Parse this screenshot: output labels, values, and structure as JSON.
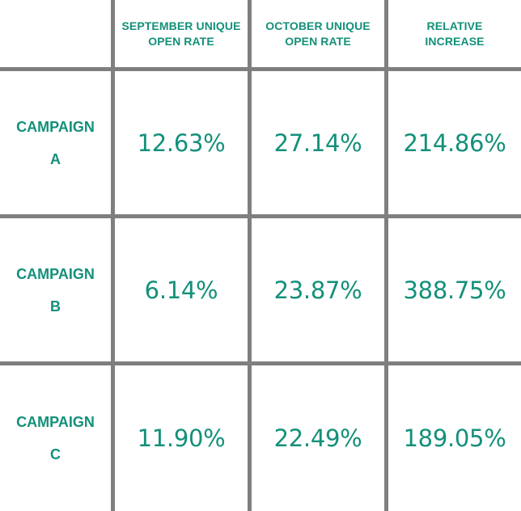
{
  "chart_data": {
    "type": "table",
    "columns": [
      "",
      "SEPTEMBER UNIQUE OPEN RATE",
      "OCTOBER UNIQUE OPEN RATE",
      "RELATIVE INCREASE"
    ],
    "rows": [
      {
        "label": "CAMPAIGN A",
        "september": "12.63%",
        "october": "27.14%",
        "increase": "214.86%"
      },
      {
        "label": "CAMPAIGN B",
        "september": "6.14%",
        "october": "23.87%",
        "increase": "388.75%"
      },
      {
        "label": "CAMPAIGN C",
        "september": "11.90%",
        "october": "22.49%",
        "increase": "189.05%"
      }
    ]
  },
  "header": {
    "col1_line1": "SEPTEMBER UNIQUE",
    "col1_line2": "OPEN RATE",
    "col2_line1": "OCTOBER UNIQUE",
    "col2_line2": "OPEN RATE",
    "col3_line1": "RELATIVE",
    "col3_line2": "INCREASE"
  },
  "rows": [
    {
      "label_line1": "CAMPAIGN",
      "label_line2": "A",
      "september": "12.63%",
      "october": "27.14%",
      "increase": "214.86%"
    },
    {
      "label_line1": "CAMPAIGN",
      "label_line2": "B",
      "september": "6.14%",
      "october": "23.87%",
      "increase": "388.75%"
    },
    {
      "label_line1": "CAMPAIGN",
      "label_line2": "C",
      "september": "11.90%",
      "october": "22.49%",
      "increase": "189.05%"
    }
  ],
  "colors": {
    "text": "#13907a",
    "gridline": "#7f7f7f",
    "background": "#ffffff"
  }
}
